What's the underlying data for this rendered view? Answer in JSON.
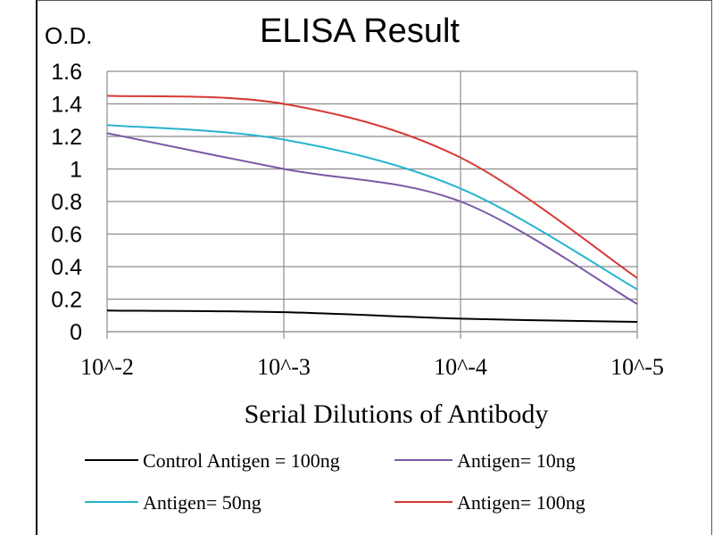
{
  "chart_data": {
    "type": "line",
    "title": "ELISA Result",
    "ylabel": "O.D.",
    "xlabel": "Serial Dilutions  of Antibody",
    "categories": [
      "10^-2",
      "10^-3",
      "10^-4",
      "10^-5"
    ],
    "ylim": [
      0,
      1.6
    ],
    "yticks": [
      "0",
      "0.2",
      "0.4",
      "0.6",
      "0.8",
      "1",
      "1.2",
      "1.4",
      "1.6"
    ],
    "grid": true,
    "legend_position": "bottom",
    "series": [
      {
        "name": "Control Antigen = 100ng",
        "color": "#000000",
        "values": [
          0.13,
          0.12,
          0.08,
          0.06
        ]
      },
      {
        "name": "Antigen= 10ng",
        "color": "#7b57a6",
        "values": [
          1.22,
          1.0,
          0.8,
          0.17
        ]
      },
      {
        "name": "Antigen= 50ng",
        "color": "#26b4cf",
        "values": [
          1.27,
          1.18,
          0.88,
          0.26
        ]
      },
      {
        "name": "Antigen= 100ng",
        "color": "#d63a34",
        "values": [
          1.45,
          1.4,
          1.07,
          0.33
        ]
      }
    ]
  }
}
